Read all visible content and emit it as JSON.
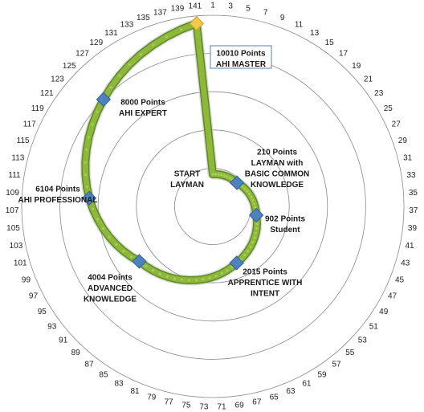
{
  "chart_data": {
    "type": "radar",
    "categories": [
      "1",
      "3",
      "5",
      "7",
      "9",
      "11",
      "13",
      "15",
      "17",
      "19",
      "21",
      "23",
      "25",
      "27",
      "29",
      "31",
      "33",
      "35",
      "37",
      "39",
      "41",
      "43",
      "45",
      "47",
      "49",
      "51",
      "53",
      "55",
      "57",
      "59",
      "61",
      "63",
      "65",
      "67",
      "69",
      "71",
      "73",
      "75",
      "77",
      "79",
      "81",
      "83",
      "85",
      "87",
      "89",
      "91",
      "93",
      "95",
      "97",
      "99",
      "101",
      "103",
      "105",
      "107",
      "109",
      "111",
      "113",
      "115",
      "117",
      "119",
      "121",
      "123",
      "125",
      "127",
      "129",
      "131",
      "133",
      "135",
      "137",
      "139",
      "141"
    ],
    "series": [
      {
        "color": "#8db83c",
        "values": [
          100,
          112,
          124,
          137,
          149,
          161,
          173,
          186,
          198,
          210,
          273,
          336,
          399,
          462,
          525,
          587,
          650,
          713,
          776,
          839,
          902,
          1003,
          1104,
          1206,
          1307,
          1408,
          1509,
          1610,
          1712,
          1813,
          1914,
          2015,
          2148,
          2280,
          2413,
          2545,
          2678,
          2811,
          2943,
          3076,
          3208,
          3341,
          3474,
          3606,
          3739,
          3871,
          4004,
          4267,
          4529,
          4792,
          5054,
          5317,
          5579,
          5842,
          6104,
          6341,
          6578,
          6815,
          7052,
          7289,
          7526,
          7763,
          8000,
          8251,
          8503,
          8754,
          9005,
          9256,
          9508,
          9759,
          10010
        ]
      }
    ],
    "ylim": [
      -2000,
      10500
    ],
    "yticks": [
      -2000,
      500,
      3000,
      5500,
      8000,
      10500
    ],
    "grid": true,
    "annotations": [
      {
        "lines": [
          "START",
          "LAYMAN"
        ]
      },
      {
        "lines": [
          "210 Points",
          "LAYMAN with",
          "BASIC COMMON",
          "KNOWLEDGE"
        ]
      },
      {
        "lines": [
          "902 Points",
          "Student"
        ]
      },
      {
        "lines": [
          "2015 Points",
          "APPRENTICE WITH",
          "INTENT"
        ]
      },
      {
        "lines": [
          "4004 Points",
          "ADVANCED",
          "KNOWLEDGE"
        ]
      },
      {
        "lines": [
          "6104 Points",
          "AHI PROFESSIONAL"
        ]
      },
      {
        "lines": [
          "8000 Points",
          "AHI EXPERT"
        ]
      },
      {
        "lines": [
          "10010 Points",
          "AHI MASTER"
        ]
      }
    ]
  }
}
